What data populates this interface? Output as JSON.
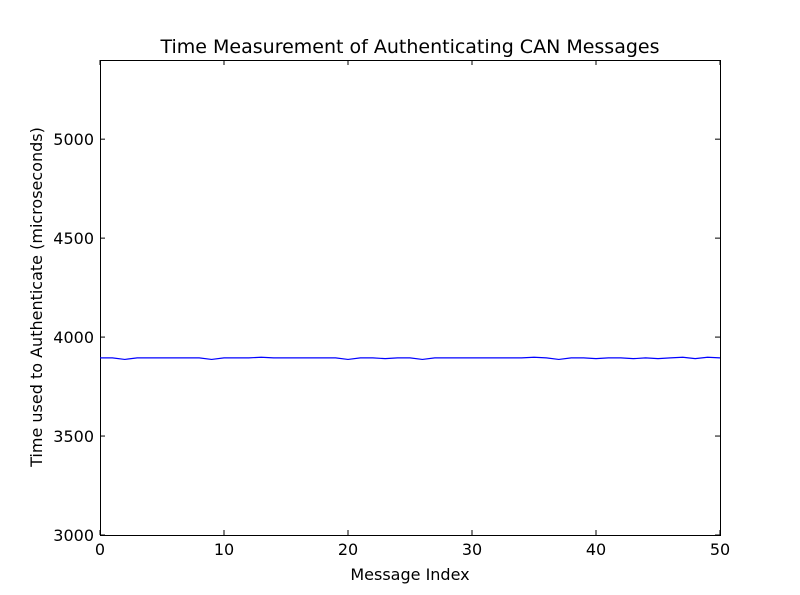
{
  "chart_data": {
    "type": "line",
    "title": "Time Measurement of Authenticating CAN Messages",
    "xlabel": "Message Index",
    "ylabel": "Time used to Authenticate (microseconds)",
    "xlim": [
      0,
      50
    ],
    "ylim": [
      3000,
      5400
    ],
    "xticks": [
      0,
      10,
      20,
      30,
      40,
      50
    ],
    "yticks": [
      3000,
      3500,
      4000,
      4500,
      5000
    ],
    "grid": false,
    "legend": "none",
    "series": [
      {
        "color": "#0000ff",
        "x": [
          0,
          1,
          2,
          3,
          4,
          5,
          6,
          7,
          8,
          9,
          10,
          11,
          12,
          13,
          14,
          15,
          16,
          17,
          18,
          19,
          20,
          21,
          22,
          23,
          24,
          25,
          26,
          27,
          28,
          29,
          30,
          31,
          32,
          33,
          34,
          35,
          36,
          37,
          38,
          39,
          40,
          41,
          42,
          43,
          44,
          45,
          46,
          47,
          48,
          49,
          50
        ],
        "values": [
          3895,
          3895,
          3887,
          3895,
          3895,
          3895,
          3895,
          3895,
          3895,
          3887,
          3895,
          3895,
          3895,
          3898,
          3895,
          3895,
          3895,
          3895,
          3895,
          3895,
          3887,
          3895,
          3895,
          3891,
          3895,
          3895,
          3887,
          3895,
          3895,
          3895,
          3895,
          3895,
          3895,
          3895,
          3895,
          3898,
          3895,
          3887,
          3895,
          3895,
          3891,
          3895,
          3895,
          3891,
          3895,
          3891,
          3895,
          3898,
          3891,
          3898,
          3895
        ]
      }
    ]
  }
}
